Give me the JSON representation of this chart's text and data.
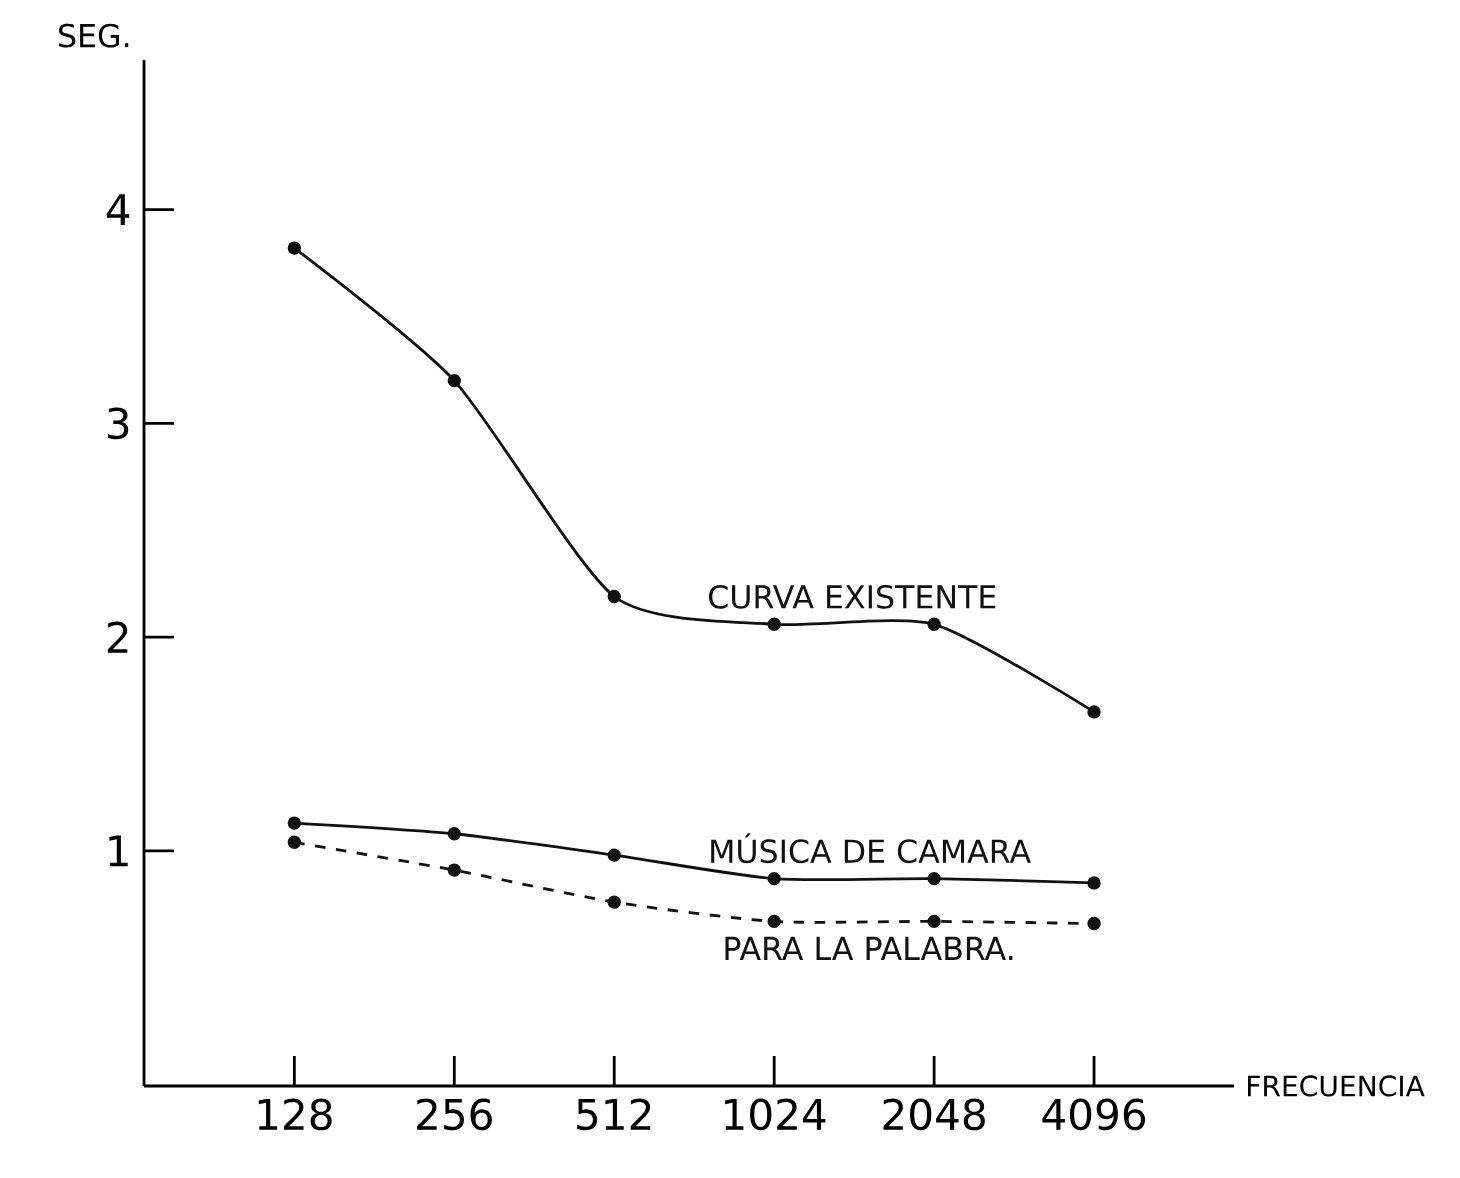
{
  "chart_data": {
    "type": "line",
    "xlabel": "FRECUENCIA",
    "ylabel": "SEG.",
    "categories": [
      "128",
      "256",
      "512",
      "1024",
      "2048",
      "4096"
    ],
    "ylim": [
      -0.1,
      4.7
    ],
    "yticks": [
      1,
      2,
      3,
      4
    ],
    "marker": "circle",
    "grid": false,
    "series": [
      {
        "name": "CURVA EXISTENTE",
        "color": "#111111",
        "line_style": "solid",
        "values": [
          3.82,
          3.2,
          2.19,
          2.06,
          2.06,
          1.65
        ]
      },
      {
        "name": "MÚSICA DE CAMARA",
        "color": "#111111",
        "line_style": "solid",
        "values": [
          1.13,
          1.08,
          0.98,
          0.87,
          0.87,
          0.85
        ]
      },
      {
        "name": "PARA LA PALABRA.",
        "color": "#111111",
        "line_style": "dashed",
        "values": [
          1.04,
          0.91,
          0.76,
          0.67,
          0.67,
          0.66
        ]
      }
    ]
  }
}
